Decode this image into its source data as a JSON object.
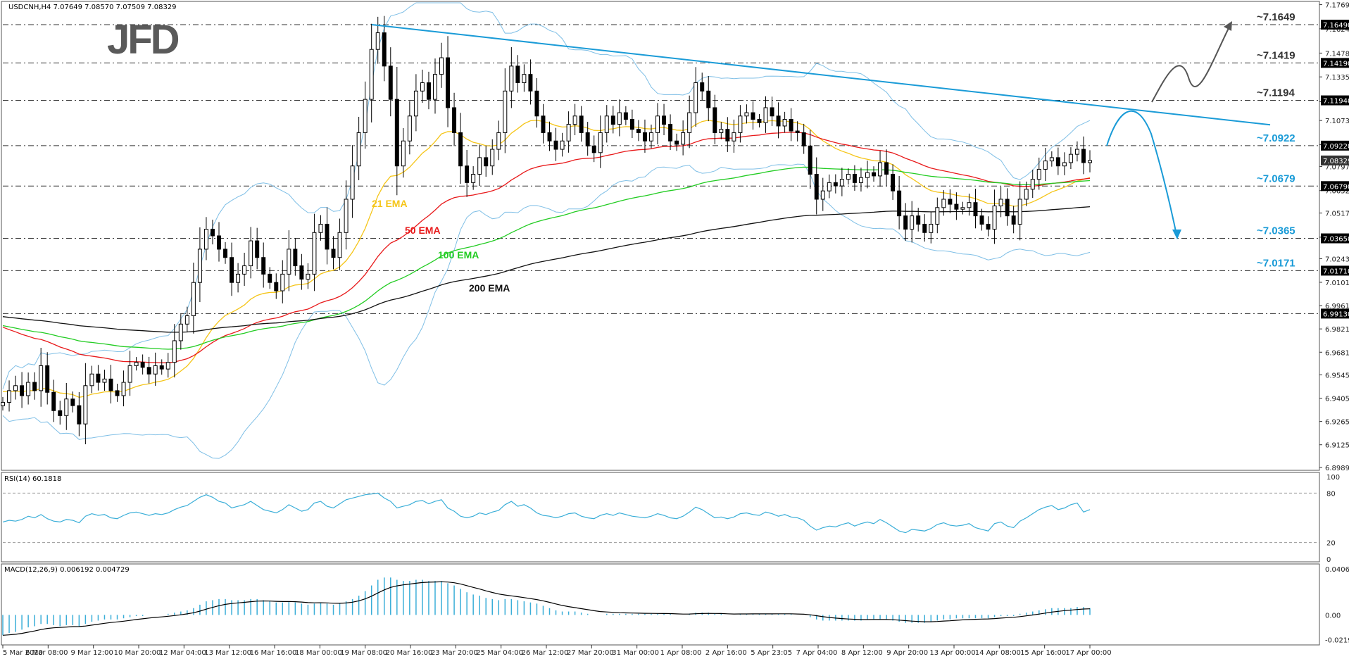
{
  "chart_data": [
    {
      "type": "candlestick",
      "title": "USDCNH,H4  7.07649 7.08570 7.07509 7.08329",
      "ylim": [
        6.898,
        7.178
      ],
      "y_ticks": [
        "7.17690",
        "7.16240",
        "7.14780",
        "7.13350",
        "7.11860",
        "7.10730",
        "7.09280",
        "7.07970",
        "7.06520",
        "7.05170",
        "7.03720",
        "7.02430",
        "7.01010",
        "6.99610",
        "6.98210",
        "6.96810",
        "6.95450",
        "6.94050",
        "6.92650",
        "6.91250",
        "6.89890"
      ],
      "x_ticks": [
        "5 Mar 2020",
        "6 Mar 08:00",
        "9 Mar 12:00",
        "10 Mar 20:00",
        "12 Mar 04:00",
        "13 Mar 12:00",
        "16 Mar 16:00",
        "18 Mar 00:00",
        "19 Mar 08:00",
        "20 Mar 16:00",
        "23 Mar 20:00",
        "25 Mar 04:00",
        "26 Mar 12:00",
        "27 Mar 20:00",
        "31 Mar 00:00",
        "1 Apr 08:00",
        "2 Apr 16:00",
        "5 Apr 23:05",
        "7 Apr 04:00",
        "8 Apr 12:00",
        "9 Apr 20:00",
        "13 Apr 00:00",
        "14 Apr 08:00",
        "15 Apr 16:00",
        "17 Apr 00:00"
      ],
      "levels": [
        {
          "value": 7.1649,
          "label": "~7.1649",
          "box": "7.16490",
          "color": "#333333"
        },
        {
          "value": 7.1419,
          "label": "~7.1419",
          "box": "7.14190",
          "color": "#333333"
        },
        {
          "value": 7.1194,
          "label": "~7.1194",
          "box": "7.11940",
          "color": "#333333"
        },
        {
          "value": 7.0922,
          "label": "~7.0922",
          "box": "7.09220",
          "color": "#1a9bd7"
        },
        {
          "value": 7.0679,
          "label": "~7.0679",
          "box": "7.06790",
          "color": "#1a9bd7"
        },
        {
          "value": 7.0365,
          "label": "~7.0365",
          "box": "7.03650",
          "color": "#1a9bd7"
        },
        {
          "value": 7.0171,
          "label": "~7.0171",
          "box": "7.01710",
          "color": "#1a9bd7"
        },
        {
          "value": 6.9913,
          "label": "",
          "box": "6.99130",
          "color": "#333333"
        }
      ],
      "current_price": {
        "value": 7.08329,
        "box": "7.08329"
      },
      "ema_labels": [
        {
          "text": "21 EMA",
          "color": "#f5c518"
        },
        {
          "text": "50 EMA",
          "color": "#e8191a"
        },
        {
          "text": "100 EMA",
          "color": "#22cc22"
        },
        {
          "text": "200 EMA",
          "color": "#111111"
        }
      ],
      "closes": [
        6.938,
        6.945,
        6.948,
        6.942,
        6.95,
        6.945,
        6.96,
        6.944,
        6.933,
        6.93,
        6.94,
        6.936,
        6.925,
        6.948,
        6.955,
        6.95,
        6.952,
        6.945,
        6.942,
        6.95,
        6.96,
        6.962,
        6.959,
        6.955,
        6.96,
        6.958,
        6.962,
        6.975,
        6.985,
        6.99,
        7.01,
        7.03,
        7.042,
        7.038,
        7.03,
        7.025,
        7.01,
        7.015,
        7.02,
        7.035,
        7.025,
        7.015,
        7.01,
        7.005,
        7.015,
        7.03,
        7.02,
        7.012,
        7.015,
        7.04,
        7.045,
        7.03,
        7.025,
        7.04,
        7.06,
        7.08,
        7.1,
        7.12,
        7.15,
        7.16,
        7.14,
        7.12,
        7.08,
        7.095,
        7.11,
        7.125,
        7.13,
        7.12,
        7.135,
        7.145,
        7.115,
        7.1,
        7.08,
        7.07,
        7.075,
        7.085,
        7.08,
        7.09,
        7.1,
        7.125,
        7.14,
        7.13,
        7.135,
        7.125,
        7.11,
        7.1,
        7.095,
        7.09,
        7.095,
        7.105,
        7.11,
        7.1,
        7.092,
        7.088,
        7.1,
        7.11,
        7.105,
        7.112,
        7.108,
        7.102,
        7.1,
        7.095,
        7.1,
        7.11,
        7.105,
        7.095,
        7.093,
        7.1,
        7.112,
        7.13,
        7.125,
        7.115,
        7.1,
        7.102,
        7.095,
        7.1,
        7.11,
        7.112,
        7.108,
        7.106,
        7.115,
        7.11,
        7.104,
        7.108,
        7.101,
        7.1,
        7.092,
        7.075,
        7.06,
        7.065,
        7.07,
        7.068,
        7.072,
        7.075,
        7.07,
        7.073,
        7.076,
        7.074,
        7.082,
        7.075,
        7.065,
        7.05,
        7.042,
        7.05,
        7.045,
        7.04,
        7.045,
        7.055,
        7.06,
        7.057,
        7.054,
        7.055,
        7.058,
        7.05,
        7.045,
        7.042,
        7.056,
        7.06,
        7.05,
        7.045,
        7.06,
        7.066,
        7.072,
        7.078,
        7.083,
        7.085,
        7.08,
        7.082,
        7.087,
        7.09,
        7.082,
        7.083
      ]
    },
    {
      "type": "line",
      "title": "RSI(14) 60.1818",
      "ylim": [
        0,
        100
      ],
      "y_ticks": [
        "100",
        "80",
        "20",
        "0"
      ],
      "values": [
        45,
        47,
        46,
        48,
        52,
        50,
        54,
        49,
        46,
        45,
        48,
        47,
        44,
        52,
        55,
        53,
        54,
        50,
        49,
        53,
        56,
        57,
        55,
        53,
        55,
        54,
        56,
        60,
        63,
        65,
        70,
        75,
        78,
        75,
        70,
        68,
        62,
        64,
        66,
        70,
        65,
        60,
        58,
        56,
        60,
        66,
        62,
        58,
        60,
        68,
        70,
        64,
        62,
        67,
        72,
        74,
        76,
        78,
        79,
        80,
        74,
        70,
        62,
        64,
        66,
        70,
        71,
        67,
        70,
        72,
        62,
        58,
        52,
        50,
        52,
        56,
        54,
        57,
        59,
        66,
        70,
        64,
        66,
        62,
        56,
        53,
        52,
        50,
        52,
        55,
        56,
        52,
        50,
        49,
        53,
        55,
        53,
        56,
        54,
        52,
        51,
        50,
        52,
        55,
        53,
        50,
        49,
        52,
        57,
        63,
        60,
        55,
        50,
        51,
        49,
        51,
        55,
        56,
        54,
        53,
        57,
        55,
        52,
        54,
        51,
        50,
        47,
        40,
        35,
        38,
        40,
        39,
        42,
        44,
        40,
        43,
        45,
        43,
        48,
        44,
        39,
        34,
        32,
        36,
        35,
        34,
        37,
        42,
        44,
        41,
        40,
        41,
        43,
        38,
        36,
        34,
        43,
        45,
        40,
        38,
        46,
        50,
        55,
        60,
        63,
        65,
        60,
        62,
        66,
        68,
        57,
        60
      ]
    },
    {
      "type": "bar+line",
      "title": "MACD(12,26,9) 0.006192 0.004729",
      "ylim": [
        -0.024,
        0.0425
      ],
      "y_ticks": [
        "0.040699",
        "0.00",
        "-0.021977"
      ],
      "histogram": [
        -0.018,
        -0.016,
        -0.015,
        -0.013,
        -0.011,
        -0.01,
        -0.008,
        -0.008,
        -0.009,
        -0.01,
        -0.009,
        -0.009,
        -0.01,
        -0.008,
        -0.006,
        -0.005,
        -0.004,
        -0.004,
        -0.004,
        -0.003,
        -0.002,
        -0.001,
        -0.001,
        0.0,
        0.0,
        0.0,
        0.001,
        0.002,
        0.003,
        0.004,
        0.006,
        0.009,
        0.012,
        0.013,
        0.014,
        0.014,
        0.013,
        0.013,
        0.013,
        0.014,
        0.014,
        0.013,
        0.012,
        0.011,
        0.011,
        0.012,
        0.011,
        0.01,
        0.009,
        0.01,
        0.011,
        0.01,
        0.009,
        0.01,
        0.012,
        0.014,
        0.017,
        0.021,
        0.026,
        0.031,
        0.033,
        0.033,
        0.031,
        0.03,
        0.03,
        0.031,
        0.031,
        0.03,
        0.03,
        0.03,
        0.028,
        0.026,
        0.023,
        0.02,
        0.018,
        0.017,
        0.015,
        0.014,
        0.013,
        0.014,
        0.014,
        0.013,
        0.012,
        0.011,
        0.01,
        0.008,
        0.006,
        0.004,
        0.003,
        0.003,
        0.003,
        0.002,
        0.001,
        0.0,
        0.0,
        0.001,
        0.001,
        0.001,
        0.001,
        0.001,
        0.001,
        0.001,
        0.001,
        0.001,
        0.001,
        0.001,
        0.0,
        0.0,
        0.001,
        0.002,
        0.002,
        0.002,
        0.001,
        0.001,
        0.0,
        0.0,
        0.001,
        0.001,
        0.001,
        0.001,
        0.001,
        0.001,
        0.001,
        0.001,
        0.001,
        0.0,
        0.0,
        -0.002,
        -0.004,
        -0.005,
        -0.005,
        -0.005,
        -0.005,
        -0.005,
        -0.005,
        -0.005,
        -0.004,
        -0.004,
        -0.004,
        -0.004,
        -0.005,
        -0.006,
        -0.007,
        -0.007,
        -0.007,
        -0.007,
        -0.006,
        -0.005,
        -0.004,
        -0.004,
        -0.003,
        -0.003,
        -0.003,
        -0.003,
        -0.003,
        -0.003,
        -0.002,
        -0.001,
        -0.001,
        -0.001,
        0.001,
        0.002,
        0.003,
        0.004,
        0.005,
        0.006,
        0.006,
        0.006,
        0.006,
        0.007,
        0.007,
        0.006
      ]
    }
  ],
  "annotations": {
    "logo_text": "JFD"
  },
  "colors": {
    "candle": "#000000",
    "bollinger": "#7fbfe6",
    "trendline": "#1a9bd7",
    "ema21": "#f5c518",
    "ema50": "#e8191a",
    "ema100": "#22cc22",
    "ema200": "#111111",
    "macd_hist": "#3aaed8",
    "macd_line": "#000000",
    "rsi_line": "#3aaed8"
  }
}
